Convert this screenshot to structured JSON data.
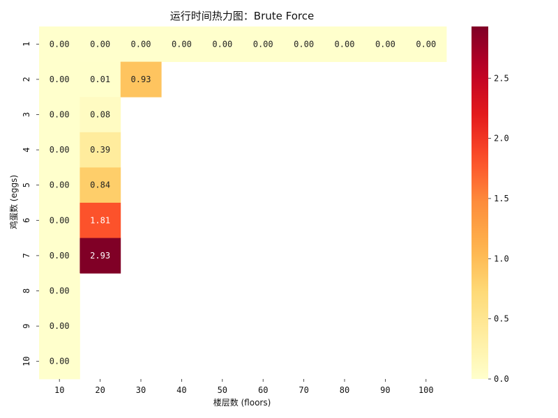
{
  "chart_data": {
    "type": "heatmap",
    "title": "运行时间热力图：Brute Force",
    "xlabel": "楼层数 (floors)",
    "ylabel": "鸡蛋数 (eggs)",
    "x_categories": [
      "10",
      "20",
      "30",
      "40",
      "50",
      "60",
      "70",
      "80",
      "90",
      "100"
    ],
    "y_categories": [
      "1",
      "2",
      "3",
      "4",
      "5",
      "6",
      "7",
      "8",
      "9",
      "10"
    ],
    "values": [
      [
        0.0,
        0.0,
        0.0,
        0.0,
        0.0,
        0.0,
        0.0,
        0.0,
        0.0,
        0.0
      ],
      [
        0.0,
        0.01,
        0.93,
        null,
        null,
        null,
        null,
        null,
        null,
        null
      ],
      [
        0.0,
        0.08,
        null,
        null,
        null,
        null,
        null,
        null,
        null,
        null
      ],
      [
        0.0,
        0.39,
        null,
        null,
        null,
        null,
        null,
        null,
        null,
        null
      ],
      [
        0.0,
        0.84,
        null,
        null,
        null,
        null,
        null,
        null,
        null,
        null
      ],
      [
        0.0,
        1.81,
        null,
        null,
        null,
        null,
        null,
        null,
        null,
        null
      ],
      [
        0.0,
        2.93,
        null,
        null,
        null,
        null,
        null,
        null,
        null,
        null
      ],
      [
        0.0,
        null,
        null,
        null,
        null,
        null,
        null,
        null,
        null,
        null
      ],
      [
        0.0,
        null,
        null,
        null,
        null,
        null,
        null,
        null,
        null,
        null
      ],
      [
        0.0,
        null,
        null,
        null,
        null,
        null,
        null,
        null,
        null,
        null
      ]
    ],
    "value_format_decimals": 2,
    "colorbar": {
      "min": 0.0,
      "max": 2.93,
      "ticks": [
        0.0,
        0.5,
        1.0,
        1.5,
        2.0,
        2.5
      ],
      "tick_labels": [
        "0.0",
        "0.5",
        "1.0",
        "1.5",
        "2.0",
        "2.5"
      ],
      "colormap": "YlOrRd",
      "colormap_stops": [
        "#ffffcc",
        "#ffeda0",
        "#fed976",
        "#feb24c",
        "#fd8d3c",
        "#fc4e2a",
        "#e31a1c",
        "#bd0026",
        "#800026"
      ]
    },
    "grid": false,
    "legend": "colorbar-right"
  }
}
